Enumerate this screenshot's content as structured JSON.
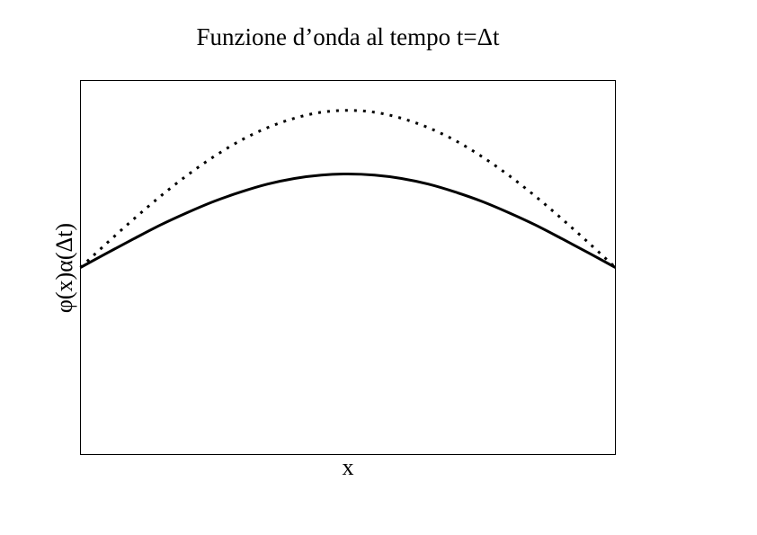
{
  "chart_data": {
    "type": "line",
    "title": "Funzione d’onda al tempo t=Δt",
    "xlabel": "x",
    "ylabel": "φ(x)α(Δt)",
    "xlim": [
      0,
      1
    ],
    "ylim": [
      0,
      1
    ],
    "grid": false,
    "ticks": false,
    "legend": "none",
    "x": [
      0,
      0.05,
      0.1,
      0.15,
      0.2,
      0.25,
      0.3,
      0.35,
      0.4,
      0.45,
      0.5,
      0.55,
      0.6,
      0.65,
      0.7,
      0.75,
      0.8,
      0.85,
      0.9,
      0.95,
      1
    ],
    "series": [
      {
        "style": "solid",
        "color": "#000000",
        "values": [
          0.5,
          0.539,
          0.577,
          0.614,
          0.647,
          0.677,
          0.702,
          0.723,
          0.738,
          0.747,
          0.75,
          0.747,
          0.738,
          0.723,
          0.702,
          0.677,
          0.647,
          0.614,
          0.577,
          0.539,
          0.5
        ]
      },
      {
        "style": "dotted",
        "color": "#000000",
        "values": [
          0.5,
          0.566,
          0.63,
          0.691,
          0.747,
          0.797,
          0.84,
          0.874,
          0.899,
          0.915,
          0.92,
          0.915,
          0.899,
          0.874,
          0.84,
          0.797,
          0.747,
          0.691,
          0.63,
          0.566,
          0.5
        ]
      }
    ]
  }
}
